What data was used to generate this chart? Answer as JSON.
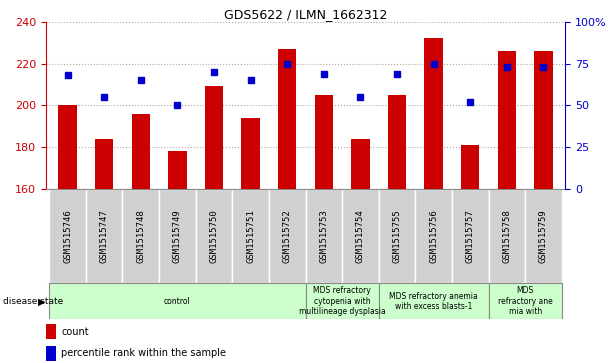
{
  "title": "GDS5622 / ILMN_1662312",
  "samples": [
    "GSM1515746",
    "GSM1515747",
    "GSM1515748",
    "GSM1515749",
    "GSM1515750",
    "GSM1515751",
    "GSM1515752",
    "GSM1515753",
    "GSM1515754",
    "GSM1515755",
    "GSM1515756",
    "GSM1515757",
    "GSM1515758",
    "GSM1515759"
  ],
  "counts": [
    200,
    184,
    196,
    178,
    209,
    194,
    227,
    205,
    184,
    205,
    232,
    181,
    226,
    226
  ],
  "percentile_ranks": [
    68,
    55,
    65,
    50,
    70,
    65,
    75,
    69,
    55,
    69,
    75,
    52,
    73,
    73
  ],
  "ylim_left": [
    160,
    240
  ],
  "ylim_right": [
    0,
    100
  ],
  "yticks_left": [
    160,
    180,
    200,
    220,
    240
  ],
  "yticks_right": [
    0,
    25,
    50,
    75,
    100
  ],
  "bar_color": "#cc0000",
  "dot_color": "#0000cc",
  "background_color": "#ffffff",
  "grid_color": "#aaaaaa",
  "tick_box_color": "#d0d0d0",
  "disease_groups": [
    {
      "label": "control",
      "start": 0,
      "end": 7
    },
    {
      "label": "MDS refractory\ncytopenia with\nmultilineage dysplasia",
      "start": 7,
      "end": 9
    },
    {
      "label": "MDS refractory anemia\nwith excess blasts-1",
      "start": 9,
      "end": 12
    },
    {
      "label": "MDS\nrefractory ane\nmia with",
      "start": 12,
      "end": 14
    }
  ],
  "disease_group_color": "#ccffcc",
  "disease_group_border": "#888888",
  "disease_state_label": "disease state",
  "legend_count_label": "count",
  "legend_percentile_label": "percentile rank within the sample"
}
